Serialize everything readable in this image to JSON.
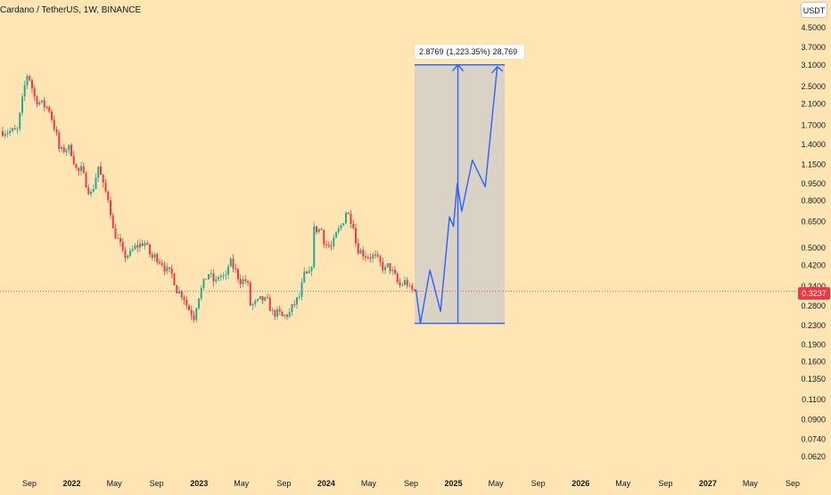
{
  "header": {
    "symbol": "Cardano / TetherUS, 1W, BINANCE",
    "currency": "USDT"
  },
  "colors": {
    "background": "#ffe5b4",
    "up": "#22ab94",
    "down": "#f23645",
    "projection": "#2962ff",
    "zone": "#d4cfc8"
  },
  "measure": {
    "label_price": "2.8769",
    "label_percent": "(1,223.35%)",
    "label_ticks": "28,769",
    "from_price": 0.235,
    "to_price": 3.11,
    "start": "2024-09",
    "end": "2025-05"
  },
  "current_price": {
    "value": 0.3237,
    "label": "0.3237"
  },
  "chart_data": {
    "type": "candlestick",
    "title": "Cardano / TetherUS, 1W, BINANCE",
    "y_scale": "log",
    "ylim": [
      0.058,
      5.0
    ],
    "xlim": [
      "2021-08",
      "2027-09"
    ],
    "y_ticks": [
      "4.5000",
      "3.7000",
      "3.1000",
      "2.5000",
      "2.1000",
      "1.7000",
      "1.4000",
      "1.1500",
      "0.9500",
      "0.8000",
      "0.6500",
      "0.5000",
      "0.4200",
      "0.3400",
      "0.2800",
      "0.2300",
      "0.1900",
      "0.1600",
      "0.1350",
      "0.1100",
      "0.0900",
      "0.0740",
      "0.0620"
    ],
    "x_ticks": [
      {
        "label": "Sep",
        "at": "2021-09",
        "bold": false
      },
      {
        "label": "2022",
        "at": "2022-01",
        "bold": true
      },
      {
        "label": "May",
        "at": "2022-05",
        "bold": false
      },
      {
        "label": "Sep",
        "at": "2022-09",
        "bold": false
      },
      {
        "label": "2023",
        "at": "2023-01",
        "bold": true
      },
      {
        "label": "May",
        "at": "2023-05",
        "bold": false
      },
      {
        "label": "Sep",
        "at": "2023-09",
        "bold": false
      },
      {
        "label": "2024",
        "at": "2024-01",
        "bold": true
      },
      {
        "label": "May",
        "at": "2024-05",
        "bold": false
      },
      {
        "label": "Sep",
        "at": "2024-09",
        "bold": false
      },
      {
        "label": "2025",
        "at": "2025-01",
        "bold": true
      },
      {
        "label": "May",
        "at": "2025-05",
        "bold": false
      },
      {
        "label": "Sep",
        "at": "2025-09",
        "bold": false
      },
      {
        "label": "2026",
        "at": "2026-01",
        "bold": true
      },
      {
        "label": "May",
        "at": "2026-05",
        "bold": false
      },
      {
        "label": "Sep",
        "at": "2026-09",
        "bold": false
      },
      {
        "label": "2027",
        "at": "2027-01",
        "bold": true
      },
      {
        "label": "May",
        "at": "2027-05",
        "bold": false
      },
      {
        "label": "Sep",
        "at": "2027-09",
        "bold": false
      }
    ],
    "price_path": [
      [
        "2021-08",
        1.6
      ],
      [
        "2021-08-22",
        2.5
      ],
      [
        "2021-09",
        2.9
      ],
      [
        "2021-09-22",
        2.2
      ],
      [
        "2021-10",
        2.15
      ],
      [
        "2021-10-22",
        2.05
      ],
      [
        "2021-11",
        2.0
      ],
      [
        "2021-11-22",
        1.55
      ],
      [
        "2021-12",
        1.3
      ],
      [
        "2021-12-22",
        1.35
      ],
      [
        "2022-01",
        1.35
      ],
      [
        "2022-01-22",
        1.05
      ],
      [
        "2022-02",
        1.1
      ],
      [
        "2022-02-22",
        0.9
      ],
      [
        "2022-03",
        0.85
      ],
      [
        "2022-03-22",
        1.15
      ],
      [
        "2022-04",
        0.95
      ],
      [
        "2022-04-22",
        0.8
      ],
      [
        "2022-05",
        0.6
      ],
      [
        "2022-05-22",
        0.52
      ],
      [
        "2022-06",
        0.46
      ],
      [
        "2022-06-22",
        0.47
      ],
      [
        "2022-07",
        0.5
      ],
      [
        "2022-07-22",
        0.52
      ],
      [
        "2022-08",
        0.53
      ],
      [
        "2022-08-22",
        0.45
      ],
      [
        "2022-09",
        0.46
      ],
      [
        "2022-09-22",
        0.43
      ],
      [
        "2022-10",
        0.4
      ],
      [
        "2022-10-22",
        0.38
      ],
      [
        "2022-11",
        0.33
      ],
      [
        "2022-11-22",
        0.31
      ],
      [
        "2022-12",
        0.28
      ],
      [
        "2022-12-22",
        0.25
      ],
      [
        "2023-01",
        0.3
      ],
      [
        "2023-01-22",
        0.36
      ],
      [
        "2023-02",
        0.39
      ],
      [
        "2023-02-22",
        0.35
      ],
      [
        "2023-03",
        0.38
      ],
      [
        "2023-03-22",
        0.37
      ],
      [
        "2023-04",
        0.44
      ],
      [
        "2023-04-22",
        0.39
      ],
      [
        "2023-05",
        0.36
      ],
      [
        "2023-05-22",
        0.36
      ],
      [
        "2023-06",
        0.28
      ],
      [
        "2023-06-22",
        0.29
      ],
      [
        "2023-07",
        0.3
      ],
      [
        "2023-07-22",
        0.29
      ],
      [
        "2023-08",
        0.26
      ],
      [
        "2023-08-22",
        0.26
      ],
      [
        "2023-09",
        0.25
      ],
      [
        "2023-09-22",
        0.26
      ],
      [
        "2023-10",
        0.28
      ],
      [
        "2023-10-22",
        0.31
      ],
      [
        "2023-11",
        0.38
      ],
      [
        "2023-11-22",
        0.38
      ],
      [
        "2023-12",
        0.6
      ],
      [
        "2023-12-22",
        0.6
      ],
      [
        "2024-01",
        0.52
      ],
      [
        "2024-01-22",
        0.5
      ],
      [
        "2024-02",
        0.56
      ],
      [
        "2024-02-22",
        0.64
      ],
      [
        "2024-03",
        0.72
      ],
      [
        "2024-03-22",
        0.64
      ],
      [
        "2024-04",
        0.5
      ],
      [
        "2024-04-22",
        0.47
      ],
      [
        "2024-05",
        0.46
      ],
      [
        "2024-05-22",
        0.46
      ],
      [
        "2024-06",
        0.44
      ],
      [
        "2024-06-22",
        0.4
      ],
      [
        "2024-07",
        0.42
      ],
      [
        "2024-07-22",
        0.37
      ],
      [
        "2024-08",
        0.34
      ],
      [
        "2024-08-22",
        0.36
      ],
      [
        "2024-09",
        0.33
      ],
      [
        "2024-09-15",
        0.3237
      ]
    ],
    "projection": [
      [
        "2024-09-15",
        0.33
      ],
      [
        "2024-09-28",
        0.235
      ],
      [
        "2024-10-25",
        0.4
      ],
      [
        "2024-11-25",
        0.265
      ],
      [
        "2024-12-20",
        0.68
      ],
      [
        "2025-01-01",
        0.62
      ],
      [
        "2025-01-12",
        0.95
      ],
      [
        "2025-01-25",
        0.72
      ],
      [
        "2025-02-25",
        1.2
      ],
      [
        "2025-04-01",
        0.92
      ],
      [
        "2025-05-05",
        3.05
      ]
    ]
  }
}
